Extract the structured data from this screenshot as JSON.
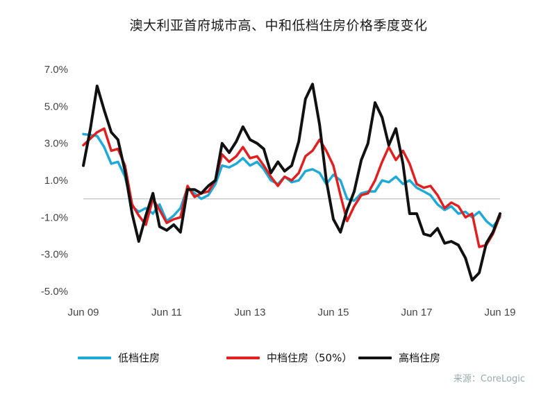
{
  "title": "澳大利亚首府城市高、中和低档住房价格季度变化",
  "source": "来源：CoreLogic",
  "chart_data": {
    "type": "line",
    "title": "澳大利亚首府城市高、中和低档住房价格季度变化",
    "ylim": [
      -5.0,
      7.0
    ],
    "y_ticks": [
      "7.0%",
      "5.0%",
      "3.0%",
      "1.0%",
      "-1.0%",
      "-3.0%",
      "-5.0%"
    ],
    "x_ticks": [
      "Jun 09",
      "Jun 11",
      "Jun 13",
      "Jun 15",
      "Jun 17",
      "Jun 19"
    ],
    "x_tick_years": [
      2009.5,
      2011.5,
      2013.5,
      2015.5,
      2017.5,
      2019.5
    ],
    "x_range": [
      2009.5,
      2019.5
    ],
    "zero_line": true,
    "legend_position": "bottom",
    "series": [
      {
        "name": "低档住房",
        "color": "#1ea9d6",
        "x": [
          2009.5,
          2009.83,
          2010.0,
          2010.17,
          2010.33,
          2010.5,
          2010.67,
          2010.83,
          2011.0,
          2011.17,
          2011.33,
          2011.5,
          2011.67,
          2011.83,
          2012.0,
          2012.17,
          2012.33,
          2012.5,
          2012.67,
          2012.83,
          2013.0,
          2013.17,
          2013.33,
          2013.5,
          2013.67,
          2013.83,
          2014.0,
          2014.17,
          2014.33,
          2014.5,
          2014.67,
          2014.83,
          2015.0,
          2015.17,
          2015.33,
          2015.5,
          2015.67,
          2015.83,
          2016.0,
          2016.17,
          2016.33,
          2016.5,
          2016.67,
          2016.83,
          2017.0,
          2017.17,
          2017.33,
          2017.5,
          2017.67,
          2017.83,
          2018.0,
          2018.17,
          2018.33,
          2018.5,
          2018.67,
          2018.83,
          2019.0,
          2019.17,
          2019.33,
          2019.5
        ],
        "values": [
          3.5,
          3.4,
          2.8,
          1.9,
          2.0,
          1.2,
          -0.4,
          -0.7,
          -0.5,
          -0.8,
          -0.3,
          -1.2,
          -0.9,
          -0.5,
          0.6,
          0.3,
          0.0,
          0.2,
          0.8,
          1.8,
          1.7,
          1.9,
          2.2,
          1.8,
          2.0,
          1.6,
          1.0,
          0.8,
          1.2,
          0.9,
          1.0,
          1.5,
          1.6,
          1.4,
          0.8,
          1.3,
          1.0,
          0.0,
          -0.1,
          0.3,
          0.4,
          0.4,
          1.0,
          0.9,
          1.2,
          0.8,
          1.0,
          0.6,
          0.4,
          0.2,
          -0.3,
          -0.6,
          -0.4,
          -0.8,
          -0.7,
          -1.0,
          -0.7,
          -1.2,
          -1.5,
          -1.0
        ]
      },
      {
        "name": "中档住房（50%）",
        "color": "#e02020",
        "x": [
          2009.5,
          2009.83,
          2010.0,
          2010.17,
          2010.33,
          2010.5,
          2010.67,
          2010.83,
          2011.0,
          2011.17,
          2011.33,
          2011.5,
          2011.67,
          2011.83,
          2012.0,
          2012.17,
          2012.33,
          2012.5,
          2012.67,
          2012.83,
          2013.0,
          2013.17,
          2013.33,
          2013.5,
          2013.67,
          2013.83,
          2014.0,
          2014.17,
          2014.33,
          2014.5,
          2014.67,
          2014.83,
          2015.0,
          2015.17,
          2015.33,
          2015.5,
          2015.67,
          2015.83,
          2016.0,
          2016.17,
          2016.33,
          2016.5,
          2016.67,
          2016.83,
          2017.0,
          2017.17,
          2017.33,
          2017.5,
          2017.67,
          2017.83,
          2018.0,
          2018.17,
          2018.33,
          2018.5,
          2018.67,
          2018.83,
          2019.0,
          2019.17,
          2019.33,
          2019.5
        ],
        "values": [
          2.9,
          3.6,
          3.8,
          2.6,
          2.7,
          1.8,
          -0.3,
          -0.9,
          -1.4,
          0.0,
          -0.6,
          -1.3,
          -1.1,
          -1.0,
          0.7,
          0.1,
          0.3,
          0.4,
          1.0,
          2.4,
          2.0,
          2.3,
          2.8,
          2.2,
          2.3,
          1.8,
          1.2,
          0.7,
          1.2,
          1.0,
          1.4,
          2.3,
          2.6,
          3.2,
          2.6,
          1.8,
          0.2,
          -1.2,
          -0.4,
          0.2,
          0.3,
          1.0,
          2.0,
          2.8,
          2.1,
          2.6,
          1.9,
          0.8,
          0.6,
          0.7,
          0.2,
          -0.5,
          -0.2,
          -0.4,
          -1.0,
          -0.8,
          -2.6,
          -2.5,
          -1.9,
          -0.9
        ]
      },
      {
        "name": "高档住房",
        "color": "#111111",
        "x": [
          2009.5,
          2009.67,
          2009.83,
          2010.0,
          2010.17,
          2010.33,
          2010.5,
          2010.67,
          2010.83,
          2011.0,
          2011.17,
          2011.33,
          2011.5,
          2011.67,
          2011.83,
          2012.0,
          2012.17,
          2012.33,
          2012.5,
          2012.67,
          2012.83,
          2013.0,
          2013.17,
          2013.33,
          2013.5,
          2013.67,
          2013.83,
          2014.0,
          2014.17,
          2014.33,
          2014.5,
          2014.67,
          2014.83,
          2015.0,
          2015.17,
          2015.33,
          2015.5,
          2015.67,
          2015.83,
          2016.0,
          2016.17,
          2016.33,
          2016.5,
          2016.67,
          2016.83,
          2017.0,
          2017.17,
          2017.33,
          2017.5,
          2017.67,
          2017.83,
          2018.0,
          2018.17,
          2018.33,
          2018.5,
          2018.67,
          2018.83,
          2019.0,
          2019.17,
          2019.33,
          2019.5
        ],
        "values": [
          1.8,
          3.8,
          6.1,
          4.8,
          3.6,
          3.2,
          1.5,
          -0.8,
          -2.3,
          -0.9,
          0.3,
          -1.5,
          -1.7,
          -1.4,
          -1.8,
          0.5,
          0.5,
          0.3,
          0.7,
          1.0,
          3.0,
          2.5,
          3.1,
          3.9,
          3.2,
          3.0,
          2.7,
          1.4,
          2.0,
          1.5,
          1.8,
          3.1,
          5.4,
          6.2,
          4.0,
          1.0,
          -1.1,
          -1.8,
          -0.6,
          0.4,
          2.1,
          3.0,
          5.2,
          4.4,
          2.9,
          3.8,
          1.9,
          -0.8,
          -0.8,
          -1.9,
          -2.0,
          -1.6,
          -2.4,
          -2.3,
          -2.5,
          -3.2,
          -4.4,
          -4.0,
          -2.4,
          -1.8,
          -0.8
        ]
      }
    ]
  }
}
